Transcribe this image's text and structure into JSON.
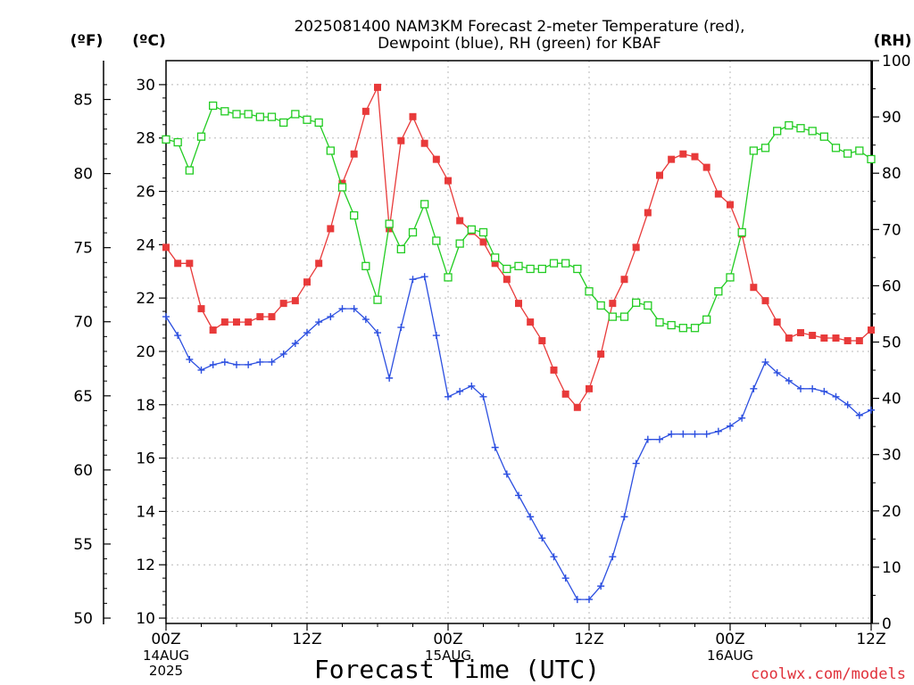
{
  "chart_data": {
    "type": "line",
    "title_line1": "2025081400 NAM3KM Forecast 2-meter Temperature (red),",
    "title_line2": "Dewpoint (blue), RH (green) for KBAF",
    "xlabel": "Forecast Time (UTC)",
    "x_hours": [
      0,
      1,
      2,
      3,
      4,
      5,
      6,
      7,
      8,
      9,
      10,
      11,
      12,
      13,
      14,
      15,
      16,
      17,
      18,
      19,
      20,
      21,
      22,
      23,
      24,
      25,
      26,
      27,
      28,
      29,
      30,
      31,
      32,
      33,
      34,
      35,
      36,
      37,
      38,
      39,
      40,
      41,
      42,
      43,
      44,
      45,
      46,
      47,
      48,
      49,
      50,
      51,
      52,
      53,
      54,
      55,
      56,
      57,
      58,
      59,
      60
    ],
    "x_ticks": [
      {
        "hour": 0,
        "label": "00Z",
        "date": "14AUG",
        "year": "2025"
      },
      {
        "hour": 12,
        "label": "12Z",
        "date": "",
        "year": ""
      },
      {
        "hour": 24,
        "label": "00Z",
        "date": "15AUG",
        "year": ""
      },
      {
        "hour": 36,
        "label": "12Z",
        "date": "",
        "year": ""
      },
      {
        "hour": 48,
        "label": "00Z",
        "date": "16AUG",
        "year": ""
      },
      {
        "hour": 60,
        "label": "12Z",
        "date": "",
        "year": ""
      }
    ],
    "y_left_c": {
      "unit_label": "(ºC)",
      "range": [
        9.8,
        30.9
      ],
      "ticks": [
        10,
        12,
        14,
        16,
        18,
        20,
        22,
        24,
        26,
        28,
        30
      ]
    },
    "y_left_f": {
      "unit_label": "(ºF)",
      "ticks": [
        50,
        55,
        60,
        65,
        70,
        75,
        80,
        85
      ]
    },
    "y_right": {
      "unit_label": "(RH)",
      "range": [
        0,
        100
      ],
      "ticks": [
        0,
        10,
        20,
        30,
        40,
        50,
        60,
        70,
        80,
        90,
        100
      ]
    },
    "grid": true,
    "series": [
      {
        "description": "2-meter Temperature",
        "axis": "celsius",
        "marker": "square-filled",
        "color": "#e83a3a",
        "values": [
          23.9,
          23.3,
          23.3,
          21.6,
          20.8,
          21.1,
          21.1,
          21.1,
          21.3,
          21.3,
          21.8,
          21.9,
          22.6,
          23.3,
          24.6,
          26.3,
          27.4,
          29.0,
          29.9,
          24.6,
          27.9,
          28.8,
          27.8,
          27.2,
          26.4,
          24.9,
          24.5,
          24.1,
          23.3,
          22.7,
          21.8,
          21.1,
          20.4,
          19.3,
          18.4,
          17.9,
          18.6,
          19.9,
          21.8,
          22.7,
          23.9,
          25.2,
          26.6,
          27.2,
          27.4,
          27.3,
          26.9,
          25.9,
          25.5,
          24.4,
          22.4,
          21.9,
          21.1,
          20.5,
          20.7,
          20.6,
          20.5,
          20.5,
          20.4,
          20.4,
          20.8
        ]
      },
      {
        "description": "Dewpoint",
        "axis": "celsius",
        "marker": "plus",
        "color": "#2c4fe0",
        "values": [
          21.3,
          20.6,
          19.7,
          19.3,
          19.5,
          19.6,
          19.5,
          19.5,
          19.6,
          19.6,
          19.9,
          20.3,
          20.7,
          21.1,
          21.3,
          21.6,
          21.6,
          21.2,
          20.7,
          19.0,
          20.9,
          22.7,
          22.8,
          20.6,
          18.3,
          18.5,
          18.7,
          18.3,
          16.4,
          15.4,
          14.6,
          13.8,
          13.0,
          12.3,
          11.5,
          10.7,
          10.7,
          11.2,
          12.3,
          13.8,
          15.8,
          16.7,
          16.7,
          16.9,
          16.9,
          16.9,
          16.9,
          17.0,
          17.2,
          17.5,
          18.6,
          19.6,
          19.2,
          18.9,
          18.6,
          18.6,
          18.5,
          18.3,
          18.0,
          17.6,
          17.8
        ]
      },
      {
        "description": "RH",
        "axis": "rh",
        "marker": "square-open",
        "color": "#22cc22",
        "values": [
          86,
          85.5,
          80.5,
          86.5,
          92,
          91,
          90.5,
          90.5,
          90,
          90,
          89,
          90.5,
          89.5,
          89,
          84,
          77.5,
          72.5,
          63.5,
          57.5,
          71,
          66.5,
          69.5,
          74.5,
          68,
          61.5,
          67.5,
          70,
          69.5,
          65,
          63,
          63.5,
          63,
          63,
          64,
          64,
          63,
          59,
          56.5,
          54.5,
          54.5,
          57,
          56.5,
          53.5,
          53,
          52.5,
          52.5,
          54,
          59,
          61.5,
          69.5,
          84,
          84.5,
          87.5,
          88.5,
          88,
          87.5,
          86.5,
          84.5,
          83.5,
          84,
          82.5
        ]
      }
    ]
  },
  "credit": "coolwx.com/models"
}
